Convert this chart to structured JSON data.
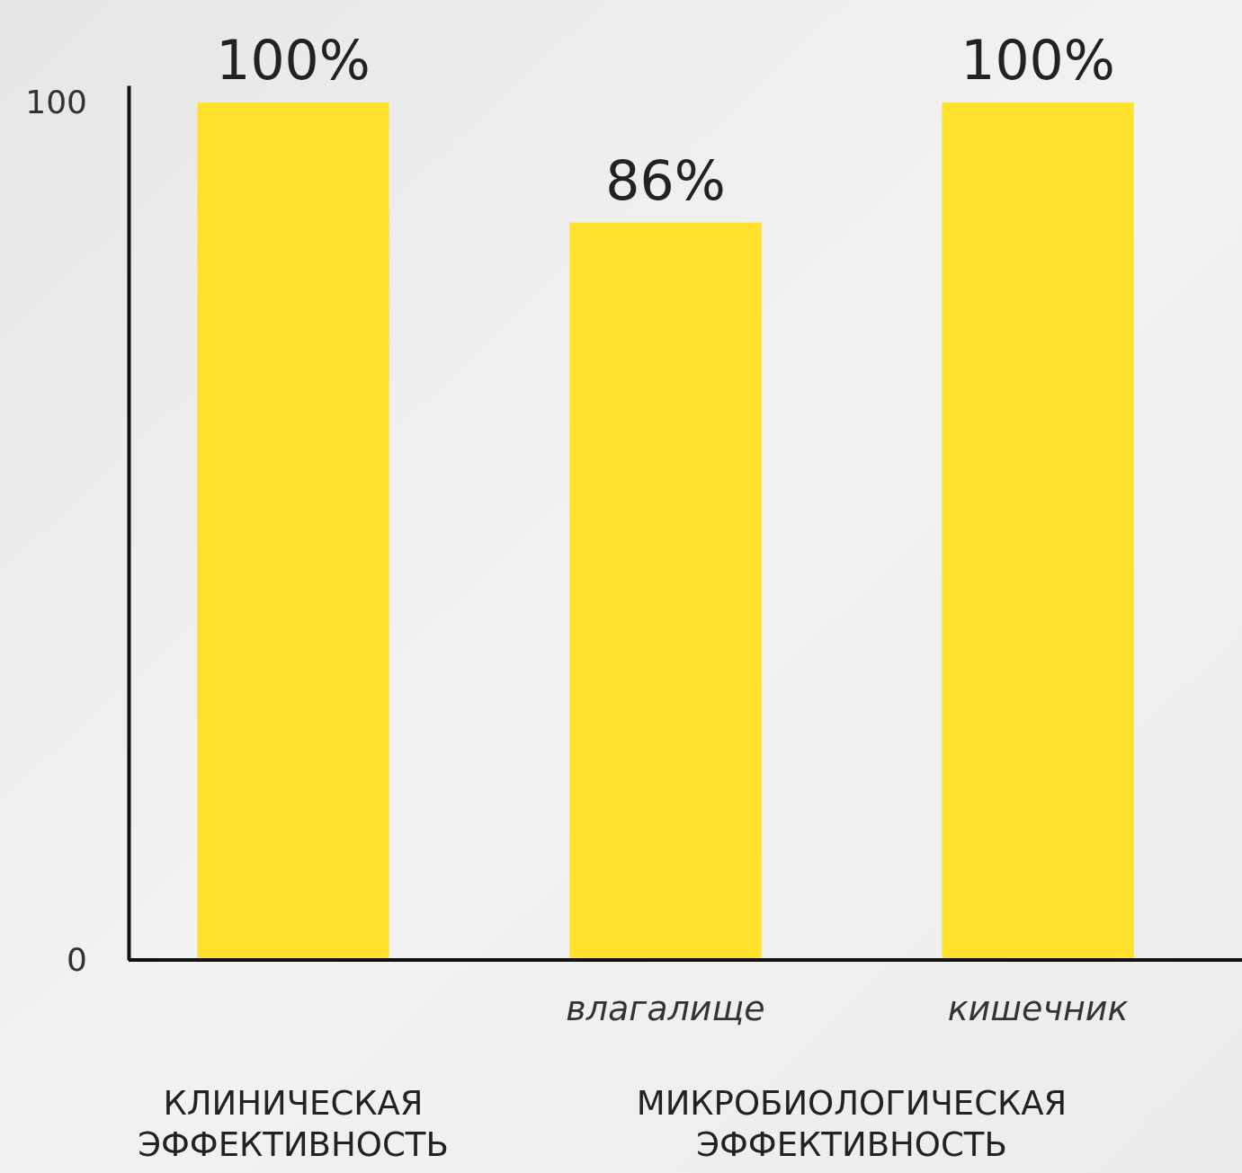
{
  "chart_data": {
    "type": "bar",
    "categories": [
      null,
      "влагалище",
      "кишечник"
    ],
    "values": [
      100,
      86,
      100
    ],
    "color": "#ffe12b",
    "value_labels": [
      "100%",
      "86%",
      "100%"
    ],
    "ylim": [
      0,
      102
    ],
    "yticks": [
      0,
      100
    ],
    "grid": false,
    "annotations": [
      "КЛИНИЧЕСКАЯ ЭФФЕКТИВНОСТЬ",
      "МИКРОБИОЛОГИЧЕСКАЯ ЭФФЕКТИВНОСТЬ"
    ]
  }
}
